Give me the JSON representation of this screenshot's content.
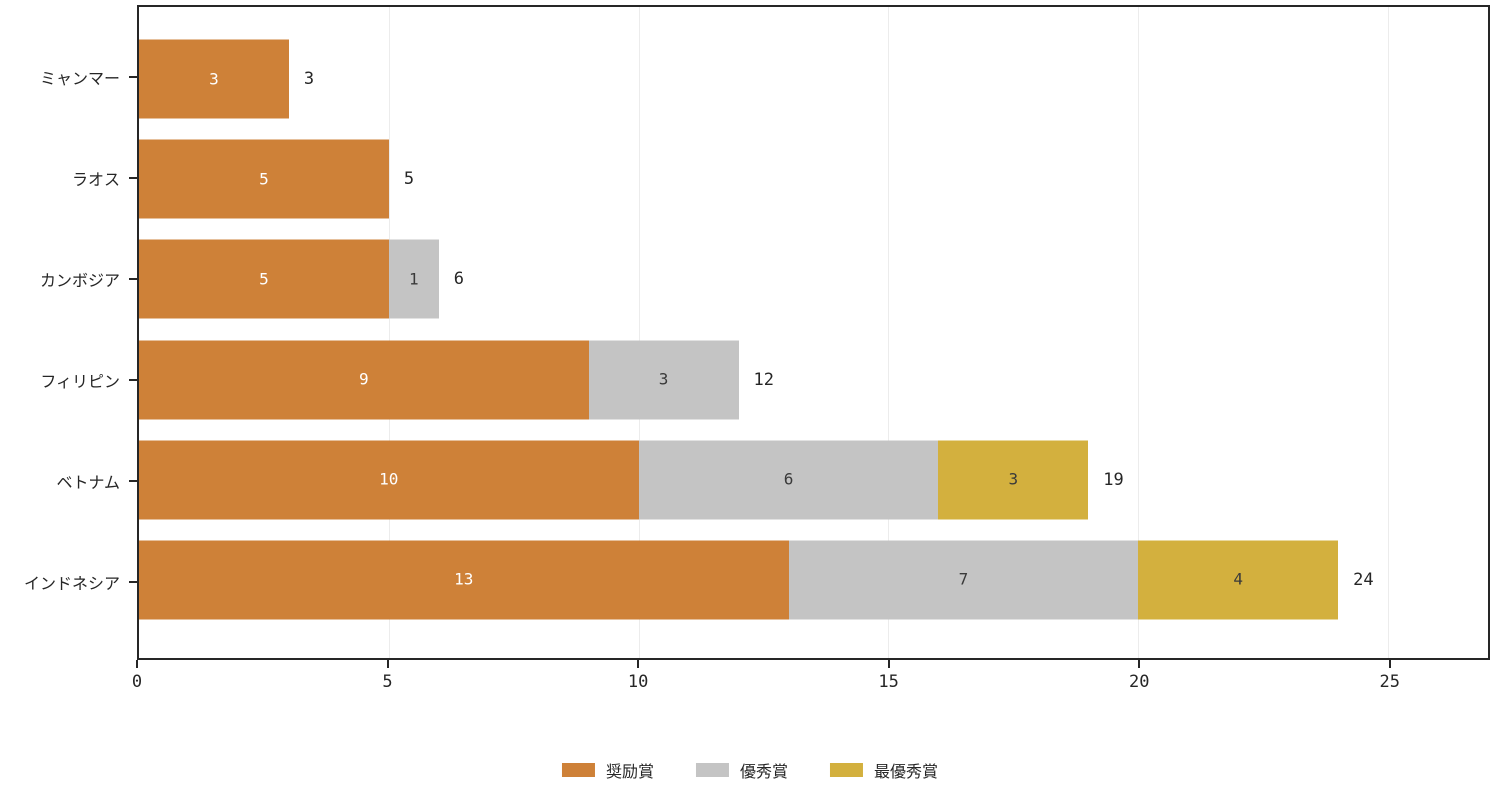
{
  "chart_data": {
    "type": "bar",
    "orientation": "horizontal",
    "stacked": true,
    "title": "",
    "xlabel": "",
    "ylabel": "",
    "categories": [
      "ミャンマー",
      "ラオス",
      "カンボジア",
      "フィリピン",
      "ベトナム",
      "インドネシア"
    ],
    "series": [
      {
        "name": "奨励賞",
        "color": "#ce8138",
        "label_color": "#ffffff",
        "values": [
          3,
          5,
          5,
          9,
          10,
          13
        ]
      },
      {
        "name": "優秀賞",
        "color": "#c4c4c4",
        "label_color": "#3a3a3a",
        "values": [
          0,
          0,
          1,
          3,
          6,
          7
        ]
      },
      {
        "name": "最優秀賞",
        "color": "#d3b03e",
        "label_color": "#3a3a3a",
        "values": [
          0,
          0,
          0,
          0,
          3,
          4
        ]
      }
    ],
    "totals": [
      3,
      5,
      6,
      12,
      19,
      24
    ],
    "x_ticks": [
      0,
      5,
      10,
      15,
      20,
      25
    ],
    "xlim": [
      0,
      27
    ],
    "grid": "vertical-light",
    "legend_position": "bottom-center"
  },
  "colors": {
    "axis": "#262626",
    "gridline": "#ececec",
    "total_label": "#262626",
    "background": "#ffffff"
  }
}
